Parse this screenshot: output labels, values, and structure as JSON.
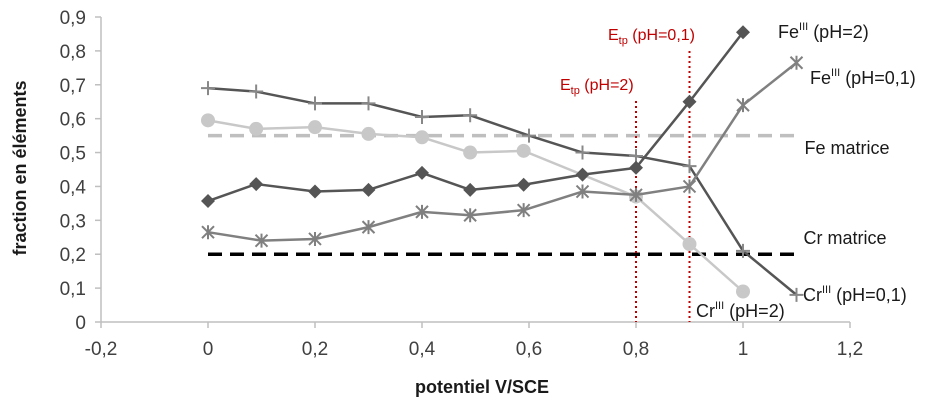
{
  "chart_data": {
    "type": "line",
    "xlabel": "potentiel V/SCE",
    "ylabel": "fraction en éléments",
    "xlim": [
      -0.2,
      1.2
    ],
    "ylim": [
      0,
      0.9
    ],
    "x_ticks": [
      "-0,2",
      "0",
      "0,2",
      "0,4",
      "0,6",
      "0,8",
      "1",
      "1,2"
    ],
    "y_ticks": [
      "0",
      "0,1",
      "0,2",
      "0,3",
      "0,4",
      "0,5",
      "0,6",
      "0,7",
      "0,8",
      "0,9"
    ],
    "grid": false,
    "legend": "none",
    "series": [
      {
        "color": "#555555",
        "marker": "plus",
        "x": [
          0,
          0.09,
          0.2,
          0.3,
          0.4,
          0.49,
          0.6,
          0.7,
          0.8,
          0.9,
          1.0,
          1.1
        ],
        "y": [
          0.69,
          0.68,
          0.645,
          0.645,
          0.605,
          0.61,
          0.55,
          0.5,
          0.49,
          0.46,
          0.21,
          0.08
        ]
      },
      {
        "color": "#c8c8c8",
        "marker": "circle",
        "x": [
          0,
          0.09,
          0.2,
          0.3,
          0.4,
          0.49,
          0.59,
          0.8,
          0.9,
          1.0
        ],
        "y": [
          0.595,
          0.57,
          0.575,
          0.555,
          0.545,
          0.5,
          0.505,
          0.37,
          0.23,
          0.09
        ]
      },
      {
        "color": "#555555",
        "marker": "diamond",
        "x": [
          0,
          0.09,
          0.2,
          0.3,
          0.4,
          0.49,
          0.59,
          0.7,
          0.8,
          0.9,
          1.0
        ],
        "y": [
          0.357,
          0.407,
          0.385,
          0.39,
          0.44,
          0.39,
          0.405,
          0.435,
          0.455,
          0.65,
          0.855
        ]
      },
      {
        "color": "#808080",
        "marker": "star",
        "x": [
          0,
          0.1,
          0.2,
          0.3,
          0.4,
          0.49,
          0.59,
          0.7,
          0.8,
          0.9,
          1.0,
          1.1
        ],
        "y": [
          0.265,
          0.24,
          0.245,
          0.28,
          0.325,
          0.315,
          0.33,
          0.385,
          0.375,
          0.4,
          0.64,
          0.765
        ]
      }
    ],
    "reference_lines": [
      {
        "label": "Fe matrice",
        "y": 0.55,
        "color": "#bfbfbf",
        "style": "dashed"
      },
      {
        "label": "Cr matrice",
        "y": 0.2,
        "color": "#000000",
        "style": "dashed"
      }
    ],
    "vertical_lines": [
      {
        "x": 0.8,
        "color": "#c00000",
        "style": "dotted",
        "label_main": "E",
        "label_sub": "tp",
        "label_rest": " (pH=2)"
      },
      {
        "x": 0.9,
        "color": "#c00000",
        "style": "dotted",
        "label_main": "E",
        "label_sub": "tp",
        "label_rest": " (pH=0,1)"
      }
    ],
    "annotations": {
      "fe_ph2": {
        "main": "Fe",
        "sup": "III",
        "rest": " (pH=2)"
      },
      "fe_ph01": {
        "main": "Fe",
        "sup": "III",
        "rest": " (pH=0,1)"
      },
      "cr_ph2": {
        "main": "Cr",
        "sup": "III",
        "rest": " (pH=2)"
      },
      "cr_ph01": {
        "main": "Cr",
        "sup": "III",
        "rest": " (pH=0,1)"
      },
      "fe_matrice": "Fe matrice",
      "cr_matrice": "Cr matrice"
    }
  }
}
